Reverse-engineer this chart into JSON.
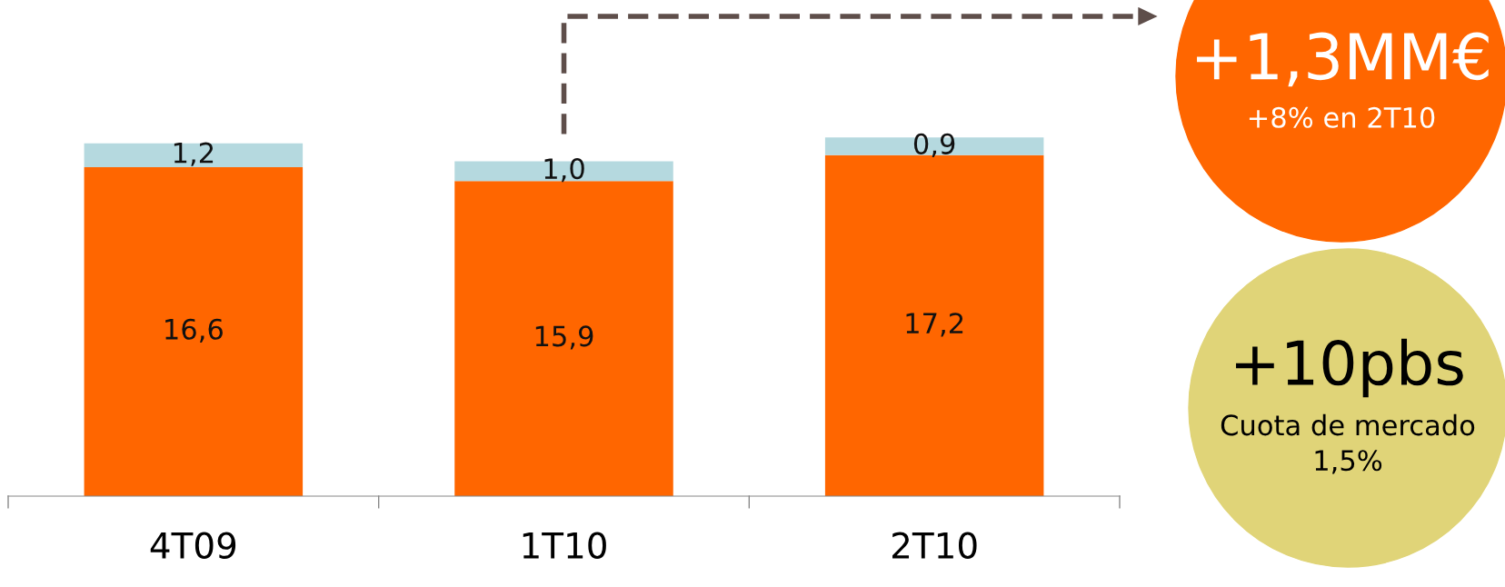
{
  "chart_data": {
    "type": "bar",
    "stacked": true,
    "categories": [
      "4T09",
      "1T10",
      "2T10"
    ],
    "series": [
      {
        "color": "#ff6600",
        "values": [
          16.6,
          15.9,
          17.2
        ],
        "value_labels": [
          "16,6",
          "15,9",
          "17,2"
        ]
      },
      {
        "color": "#b5d9df",
        "values": [
          1.2,
          1.0,
          0.9
        ],
        "value_labels": [
          "1,2",
          "1,0",
          "0,9"
        ]
      }
    ],
    "annotations": [
      "+1,3MM€",
      "+8% en 2T10",
      "+10pbs",
      "Cuota de mercado\n1,5%"
    ]
  }
}
